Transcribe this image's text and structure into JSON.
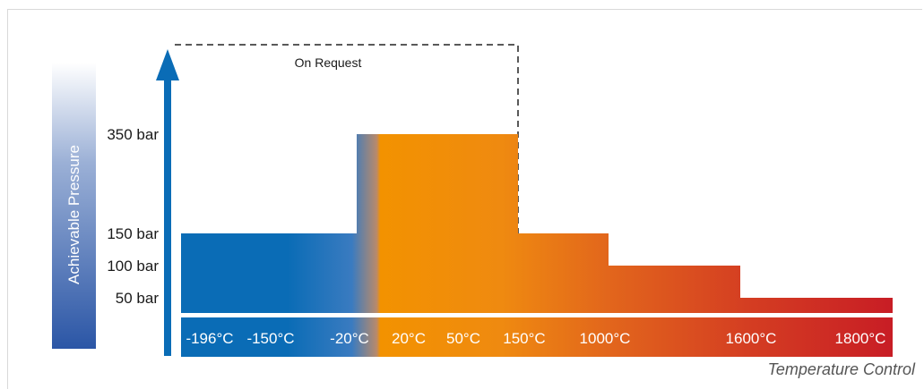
{
  "chart_data": {
    "type": "bar",
    "title": "",
    "ylabel": "Achievable Pressure",
    "xlabel": "Temperature Control",
    "annotation": "On Request",
    "y_ticks": [
      {
        "label": "350 bar",
        "value": 350
      },
      {
        "label": "150 bar",
        "value": 150
      },
      {
        "label": "100 bar",
        "value": 100
      },
      {
        "label": "50 bar",
        "value": 50
      }
    ],
    "x_ticks": [
      "-196°C",
      "-150°C",
      "-20°C",
      "20°C",
      "50°C",
      "150°C",
      "1000°C",
      "1600°C",
      "1800°C"
    ],
    "segments": [
      {
        "from": "-196°C",
        "to": "-20°C",
        "pressure": 150
      },
      {
        "from": "-20°C",
        "to": "150°C",
        "pressure": 350
      },
      {
        "from": "150°C",
        "to": "1000°C",
        "pressure": 150
      },
      {
        "from": "1000°C",
        "to": "1600°C",
        "pressure": 100
      },
      {
        "from": "1600°C",
        "to": "1800°C",
        "pressure": 50
      }
    ],
    "on_request_region": {
      "from": "-196°C",
      "to": "150°C"
    },
    "colors": {
      "cold": "#0a6cb6",
      "warm": "#f39200",
      "hot": "#c81d25",
      "axis": "#0a6cb6",
      "text": "#1a1a1a",
      "label_light": "#ffffff"
    }
  }
}
